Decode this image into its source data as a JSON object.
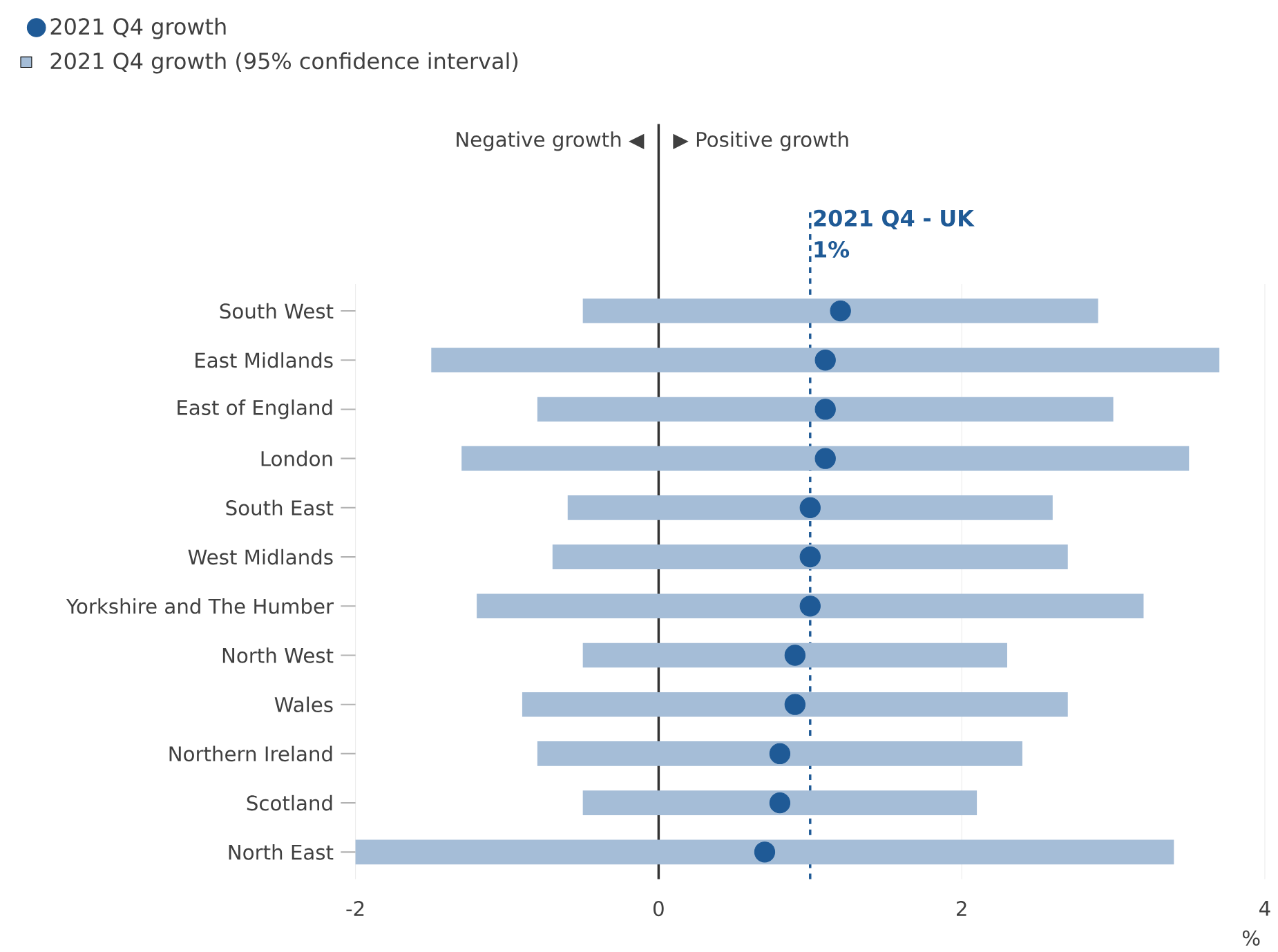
{
  "chart_data": {
    "type": "bar",
    "orientation": "horizontal",
    "categories": [
      "South West",
      "East Midlands",
      "East of England",
      "London",
      "South East",
      "West Midlands",
      "Yorkshire and The Humber",
      "North West",
      "Wales",
      "Northern Ireland",
      "Scotland",
      "North East"
    ],
    "series": [
      {
        "name": "2021 Q4 growth",
        "type": "scatter",
        "color": "#1f5a96",
        "values": [
          1.2,
          1.1,
          1.1,
          1.1,
          1.0,
          1.0,
          1.0,
          0.9,
          0.9,
          0.8,
          0.8,
          0.7
        ]
      },
      {
        "name": "2021 Q4 growth (95% confidence interval)",
        "type": "bar",
        "color": "#a5bdd7",
        "base": [
          -0.5,
          -1.5,
          -0.8,
          -1.3,
          -0.6,
          -0.7,
          -1.2,
          -0.5,
          -0.9,
          -0.8,
          -0.5,
          -2.0
        ],
        "values": [
          3.4,
          5.2,
          3.8,
          4.8,
          3.2,
          3.4,
          4.4,
          2.8,
          3.6,
          3.2,
          2.6,
          5.4
        ]
      }
    ],
    "xlim": [
      -2,
      4
    ],
    "xticks": [
      -2,
      0,
      2,
      4
    ],
    "xlabel": "%",
    "grid": "x",
    "legend": "top left",
    "marker": "circle",
    "ref_lines": [
      {
        "axis": "x",
        "value": 0,
        "color": "#333333",
        "line_style": "solid"
      },
      {
        "axis": "x",
        "value": 1,
        "label": "2021 Q4 - UK 1%",
        "color": "#1f5a96",
        "line_style": "dashed"
      }
    ],
    "annotations": [
      "Negative growth ◀",
      "▶ Positive growth"
    ]
  }
}
